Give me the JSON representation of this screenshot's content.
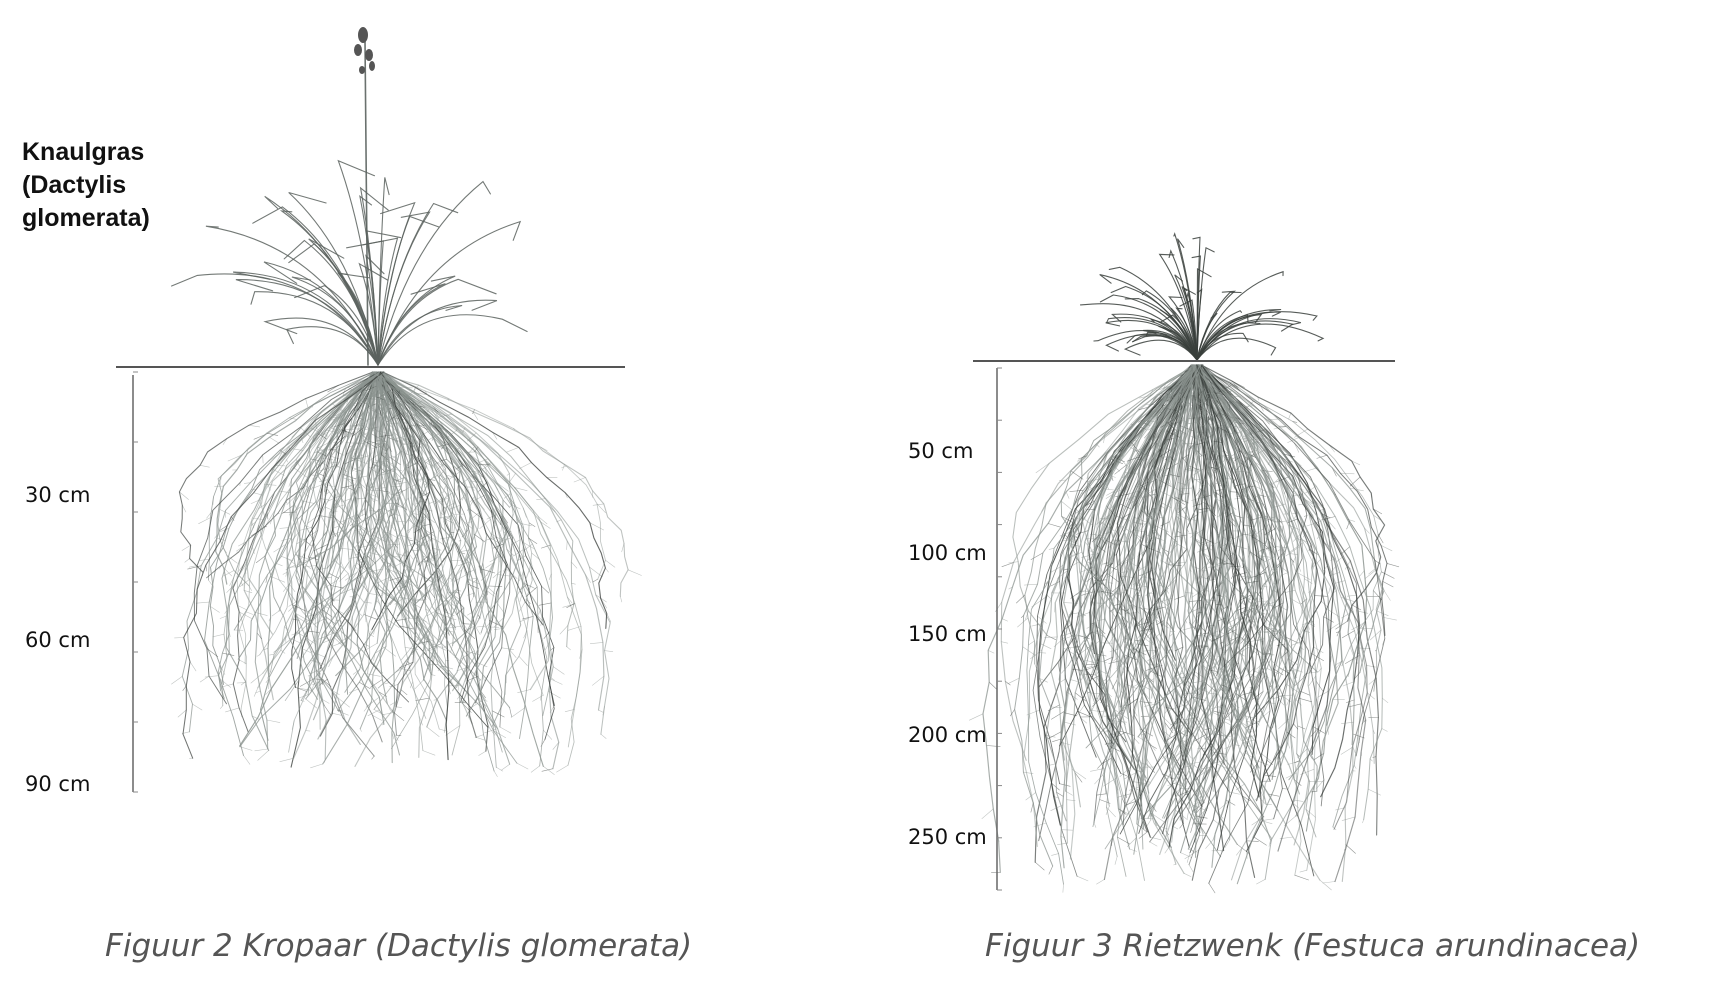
{
  "figure_left": {
    "species_label": "Knaulgras\n(Dactylis\nglomerata)",
    "depth_labels": [
      "30 cm",
      "60 cm",
      "90 cm"
    ],
    "caption": "Figuur 2 Kropaar (Dactylis glomerata)"
  },
  "figure_right": {
    "depth_labels": [
      "50 cm",
      "100 cm",
      "150 cm",
      "200 cm",
      "250 cm"
    ],
    "caption": "Figuur 3 Rietzwenk (Festuca arundinacea)"
  },
  "colors": {
    "root": "#8c9490",
    "root_dark": "#3a3f3c",
    "grass": "#5a625e",
    "text": "#111111",
    "caption": "#555555"
  },
  "icons": [
    "flower-head-icon"
  ]
}
